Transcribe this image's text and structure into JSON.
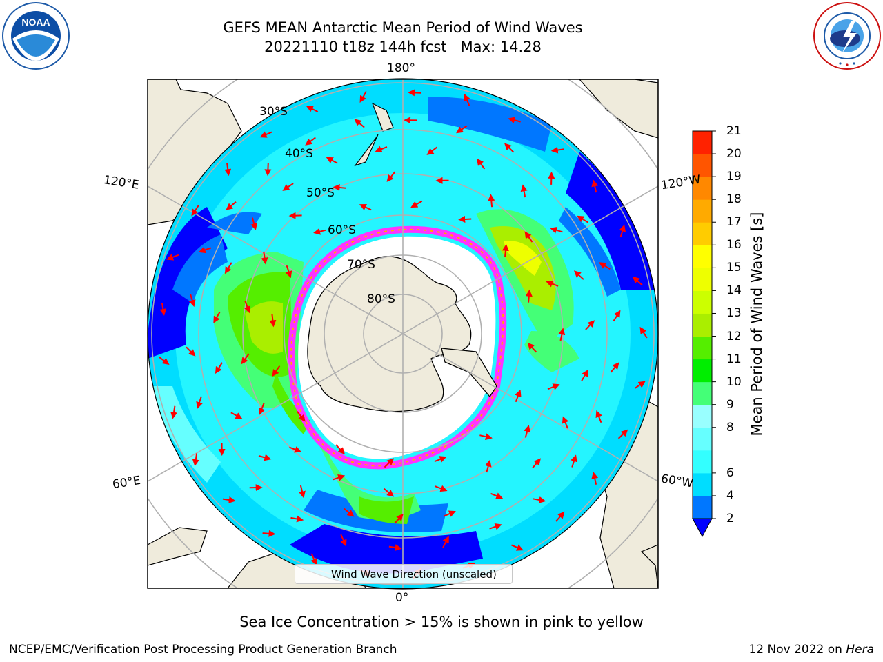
{
  "header": {
    "title_line1": "GEFS MEAN Antarctic Mean Period of Wind Waves",
    "title_line2": "20221110 t18z 144h fcst   Max: 14.28"
  },
  "logos": {
    "left": "noaa-logo",
    "right": "nws-logo",
    "left_text": "NOAA",
    "left_ring_text": "NATIONAL OCEANIC AND ATMOSPHERIC ADMINISTRATION · U.S. DEPARTMENT OF COMMERCE",
    "right_ring_text": "NATIONAL WEATHER SERVICE"
  },
  "map": {
    "projection": "south polar stereographic",
    "longitude_labels": {
      "top": "180°",
      "bottom": "0°",
      "upper_left": "120°E",
      "upper_right": "120°W",
      "lower_left": "60°E",
      "lower_right": "60°W"
    },
    "latitude_labels": [
      "30°S",
      "40°S",
      "50°S",
      "60°S",
      "70°S",
      "80°S"
    ],
    "colors": {
      "land": "#efebdc",
      "ocean_low": "#0000ff",
      "sea_ice": "#ff33ff",
      "grid": "#b0b0b0",
      "arrows": "#ff0000"
    }
  },
  "colorbar": {
    "label": "Mean Period of Wind Waves [s]",
    "ticks": [
      "21",
      "20",
      "19",
      "18",
      "17",
      "16",
      "15",
      "14",
      "13",
      "12",
      "11",
      "10",
      "9",
      "8",
      "6",
      "4",
      "2"
    ],
    "bounds": [
      2,
      4,
      6,
      7,
      8,
      9,
      10,
      11,
      12,
      13,
      14,
      15,
      16,
      17,
      18,
      19,
      20,
      21
    ],
    "colors": [
      "#0077ff",
      "#00ddff",
      "#33ffff",
      "#66ffff",
      "#99ffff",
      "#44ff77",
      "#00ee00",
      "#55ee00",
      "#aaee00",
      "#ccff00",
      "#eeff00",
      "#ffff00",
      "#ffcc00",
      "#ffaa00",
      "#ff8800",
      "#ff5500",
      "#ff2200"
    ],
    "under_color": "#0000ff"
  },
  "legend": {
    "label": "Wind Wave Direction (unscaled)"
  },
  "note": "Sea Ice Concentration > 15% is shown in pink to yellow",
  "footer": {
    "left": "NCEP/EMC/Verification Post Processing Product Generation Branch",
    "right_date": "12 Nov 2022 on ",
    "right_machine": "Hera"
  }
}
